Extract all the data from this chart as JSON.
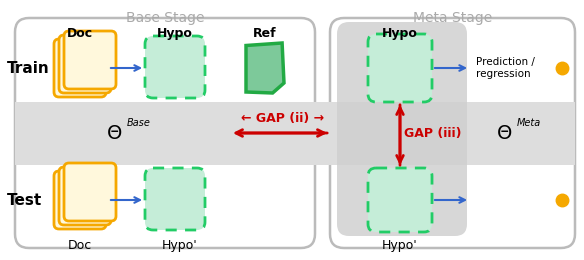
{
  "figsize": [
    5.84,
    2.6
  ],
  "dpi": 100,
  "bg_color": "#ffffff",
  "base_stage_label": "Base Stage",
  "meta_stage_label": "Meta Stage",
  "train_label": "Train",
  "test_label": "Test",
  "doc_label": "Doc",
  "hypo_label": "Hypo",
  "ref_label": "Ref",
  "hypo_prime_label": "Hypo'",
  "theta_base": "Θ",
  "base_superscript": "Base",
  "meta_superscript": "Meta",
  "gap_ii_label": "← GAP (ii) →",
  "gap_iii_label": "GAP (iii)",
  "prediction_label": "Prediction /\nregression",
  "outer_color": "#BBBBBB",
  "band_color": "#DDDDDD",
  "inner_col_color": "#CCCCCC",
  "doc_outer": "#F5A800",
  "doc_inner": "#FFF8DC",
  "hypo_edge": "#22CC66",
  "hypo_fill": "#C5EDD8",
  "ref_edge": "#22AA44",
  "ref_fill": "#7DC99A",
  "arrow_blue": "#3366CC",
  "gap_red": "#CC0000",
  "dot_color": "#F5A800",
  "text_gray": "#AAAAAA"
}
